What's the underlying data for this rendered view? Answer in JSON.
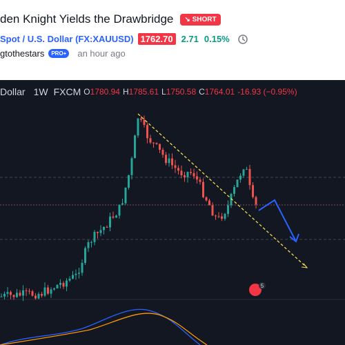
{
  "header": {
    "title": "den Knight Yields the Drawbridge",
    "badge": "SHORT",
    "symbol": "Spot / U.S. Dollar (FX:XAUUSD)",
    "price": "1762.70",
    "change": "2.71",
    "change_percent": "0.15%",
    "author": "gtothestars",
    "author_badge": "PRO+",
    "time": "an hour ago"
  },
  "chart_legend": {
    "symbol": "Dollar",
    "interval": "1W",
    "source": "FXCM",
    "open_label": "O",
    "open": "1780.94",
    "high_label": "H",
    "high": "1785.61",
    "low_label": "L",
    "low": "1750.58",
    "close_label": "C",
    "close": "1764.01",
    "change": "-16.93 (−0.95%)"
  },
  "chart_badge": "5"
}
